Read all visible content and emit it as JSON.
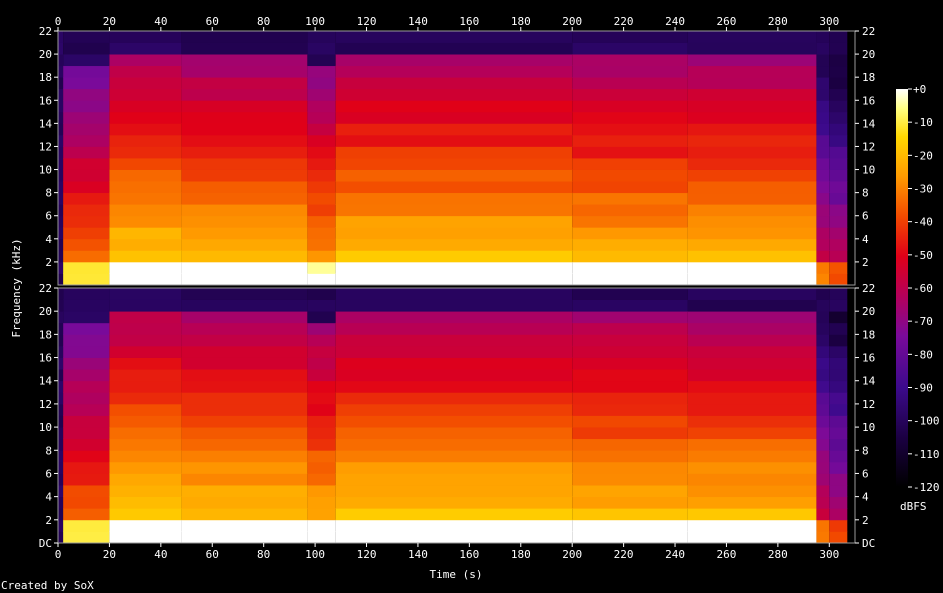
{
  "chart_data": {
    "type": "heatmap",
    "title": "",
    "xlabel": "Time (s)",
    "ylabel": "Frequency (kHz)",
    "colorbar_label": "dBFS",
    "credit": "Created by SoX",
    "x_ticks": [
      "0",
      "20",
      "40",
      "60",
      "80",
      "100",
      "120",
      "140",
      "160",
      "180",
      "200",
      "220",
      "240",
      "260",
      "280",
      "300"
    ],
    "xlim": [
      0,
      310
    ],
    "y_ticks_top": [
      "2",
      "4",
      "6",
      "8",
      "10",
      "12",
      "14",
      "16",
      "18",
      "20",
      "22"
    ],
    "y_ticks_bottom": [
      "DC",
      "2",
      "4",
      "6",
      "8",
      "10",
      "12",
      "14",
      "16",
      "18",
      "20",
      "22"
    ],
    "ylim_khz": [
      0,
      22
    ],
    "colorbar_ticks": [
      "+0",
      "-10",
      "-20",
      "-30",
      "-40",
      "-50",
      "-60",
      "-70",
      "-80",
      "-90",
      "-100",
      "-110",
      "-120"
    ],
    "zlim_dbfs": [
      -120,
      0
    ],
    "channels": [
      {
        "segments": [
          {
            "t": [
              0,
              2
            ],
            "level": -120
          },
          {
            "t": [
              2,
              20
            ],
            "level": -70,
            "cutoff_khz": 19
          },
          {
            "t": [
              20,
              48
            ],
            "level": -55,
            "cutoff_khz": 20
          },
          {
            "t": [
              48,
              97
            ],
            "level": -58,
            "cutoff_khz": 20
          },
          {
            "t": [
              97,
              108
            ],
            "level": -62,
            "cutoff_khz": 19
          },
          {
            "t": [
              108,
              200
            ],
            "level": -56,
            "cutoff_khz": 20
          },
          {
            "t": [
              200,
              245
            ],
            "level": -57,
            "cutoff_khz": 19.5
          },
          {
            "t": [
              245,
              295
            ],
            "level": -58,
            "cutoff_khz": 20
          },
          {
            "t": [
              295,
              300
            ],
            "level": -90,
            "cutoff_khz": 18
          },
          {
            "t": [
              300,
              307
            ],
            "level": -100,
            "cutoff_khz": 20
          }
        ]
      },
      {
        "segments": [
          {
            "t": [
              0,
              2
            ],
            "level": -120
          },
          {
            "t": [
              2,
              20
            ],
            "level": -70,
            "cutoff_khz": 19
          },
          {
            "t": [
              20,
              48
            ],
            "level": -54,
            "cutoff_khz": 20
          },
          {
            "t": [
              48,
              97
            ],
            "level": -56,
            "cutoff_khz": 20
          },
          {
            "t": [
              97,
              108
            ],
            "level": -58,
            "cutoff_khz": 19
          },
          {
            "t": [
              108,
              200
            ],
            "level": -55,
            "cutoff_khz": 20
          },
          {
            "t": [
              200,
              245
            ],
            "level": -56,
            "cutoff_khz": 19.5
          },
          {
            "t": [
              245,
              295
            ],
            "level": -57,
            "cutoff_khz": 20
          },
          {
            "t": [
              295,
              300
            ],
            "level": -90,
            "cutoff_khz": 18
          },
          {
            "t": [
              300,
              307
            ],
            "level": -100,
            "cutoff_khz": 20
          }
        ]
      }
    ]
  }
}
